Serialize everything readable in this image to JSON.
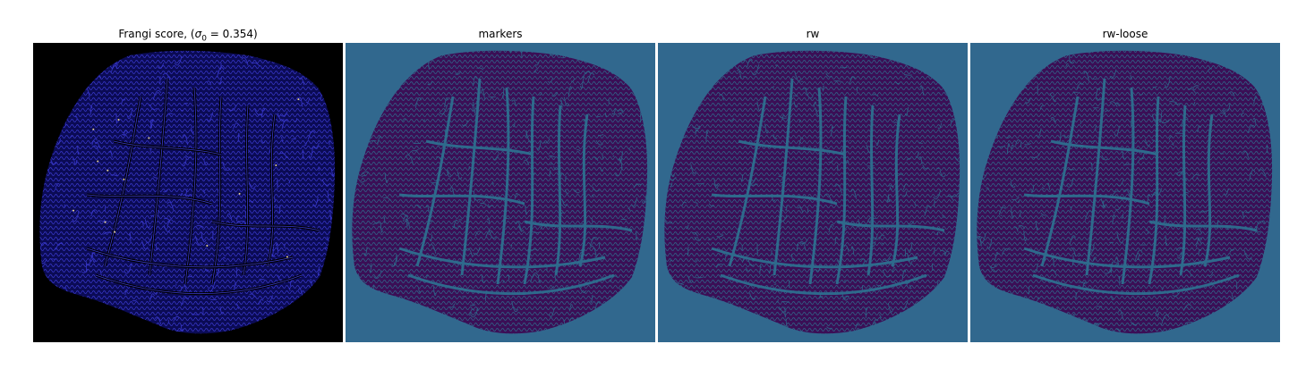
{
  "figure": {
    "panels": [
      {
        "id": "frangi",
        "title_prefix": "Frangi score, (",
        "title_sigma": "σ",
        "title_sub": "0",
        "title_suffix": " = 0.354)",
        "background": "#000000",
        "tissue_color": "#0b0b55",
        "vessel_color": "#3a3ad0",
        "highlight_color": "#e8d28a"
      },
      {
        "id": "markers",
        "title": "markers",
        "background": "#31688e",
        "tissue_color": "#3b0f56",
        "vessel_color": "#2e6a8c"
      },
      {
        "id": "rw",
        "title": "rw",
        "background": "#31688e",
        "tissue_color": "#3b0f56",
        "vessel_color": "#2e6a8c"
      },
      {
        "id": "rw-loose",
        "title": "rw-loose",
        "background": "#31688e",
        "tissue_color": "#3b0f56",
        "vessel_color": "#2e6a8c"
      }
    ]
  }
}
